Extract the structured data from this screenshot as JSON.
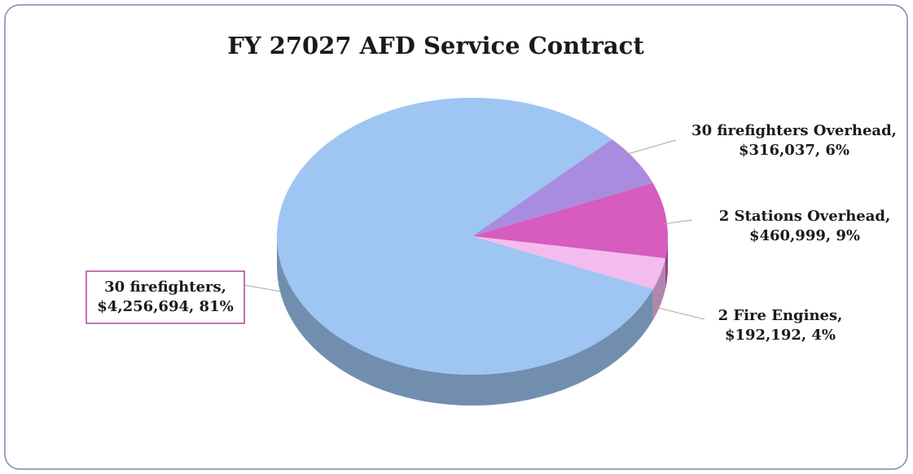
{
  "chart_data": {
    "type": "pie",
    "title": "FY 27027 AFD Service Contract",
    "categories": [
      "30 firefighters",
      "30 firefighters Overhead",
      "2 Stations Overhead",
      "2 Fire Engines"
    ],
    "values": [
      4256694,
      316037,
      460999,
      192192
    ],
    "data_labels": [
      [
        "30 firefighters,",
        "$4,256,694, 81%"
      ],
      [
        "30 firefighters Overhead,",
        "$316,037, 6%"
      ],
      [
        "2 Stations Overhead,",
        "$460,999, 9%"
      ],
      [
        "2 Fire Engines,",
        "$192,192, 4%"
      ]
    ],
    "colors": [
      "#9fc5f2",
      "#a98be0",
      "#d65cbe",
      "#f4bbef"
    ]
  }
}
